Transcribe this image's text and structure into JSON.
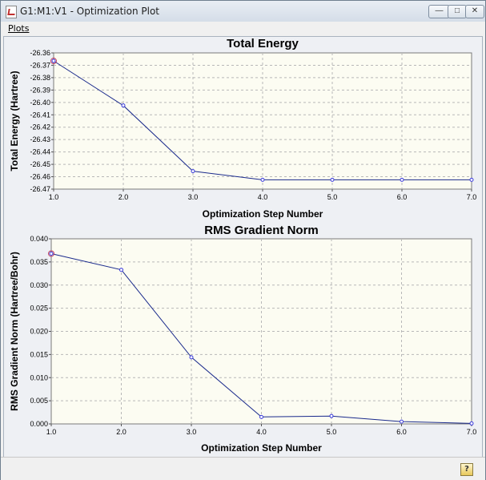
{
  "window": {
    "title": "G1:M1:V1 - Optimization Plot",
    "min_glyph": "—",
    "max_glyph": "□",
    "close_glyph": "✕"
  },
  "menu": {
    "plots": "Plots"
  },
  "status": {
    "help_glyph": "?"
  },
  "colors": {
    "line": "#1a2a8c",
    "marker": "#3a3adc",
    "highlight": "#c04060",
    "grid": "#b8b8b8",
    "plot_bg": "#fcfcf2"
  },
  "chart_data": [
    {
      "type": "line",
      "title": "Total Energy",
      "xlabel": "Optimization Step Number",
      "ylabel": "Total Energy (Hartree)",
      "x": [
        1,
        2,
        3,
        4,
        5,
        6,
        7
      ],
      "y": [
        -26.3665,
        -26.4025,
        -26.4555,
        -26.4625,
        -26.4625,
        -26.4625,
        -26.4625
      ],
      "xticks": [
        "1.0",
        "2.0",
        "3.0",
        "4.0",
        "5.0",
        "6.0",
        "7.0"
      ],
      "yticks": [
        "-26.36",
        "-26.37",
        "-26.38",
        "-26.39",
        "-26.40",
        "-26.41",
        "-26.42",
        "-26.43",
        "-26.44",
        "-26.45",
        "-26.46",
        "-26.47"
      ],
      "xlim": [
        1,
        7
      ],
      "ylim": [
        -26.47,
        -26.36
      ],
      "grid": true
    },
    {
      "type": "line",
      "title": "RMS Gradient Norm",
      "xlabel": "Optimization Step Number",
      "ylabel": "RMS Gradient Norm (Hartree/Bohr)",
      "x": [
        1,
        2,
        3,
        4,
        5,
        6,
        7
      ],
      "y": [
        0.0368,
        0.0333,
        0.0144,
        0.0015,
        0.0017,
        0.0005,
        0.0001
      ],
      "xticks": [
        "1.0",
        "2.0",
        "3.0",
        "4.0",
        "5.0",
        "6.0",
        "7.0"
      ],
      "yticks": [
        "0.000",
        "0.005",
        "0.010",
        "0.015",
        "0.020",
        "0.025",
        "0.030",
        "0.035",
        "0.040"
      ],
      "xlim": [
        1,
        7
      ],
      "ylim": [
        0,
        0.04
      ],
      "grid": true
    }
  ]
}
